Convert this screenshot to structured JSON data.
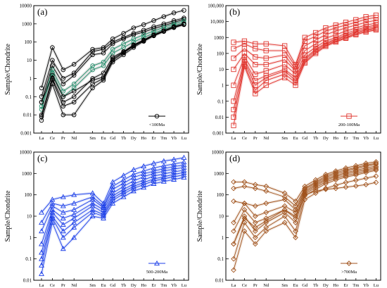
{
  "figure": {
    "elements": [
      "La",
      "Ce",
      "Pr",
      "Nd",
      "Sm",
      "Eu",
      "Gd",
      "Tb",
      "Dy",
      "Ho",
      "Er",
      "Tm",
      "Yb",
      "Lu"
    ],
    "ylabel": "Sample/Chondrite"
  },
  "chart_data": [
    {
      "type": "line",
      "panel_label": "(a)",
      "legend": "<100Ma",
      "marker": "circle",
      "color": "#000000",
      "highlight_color": "#1f8f6a",
      "ylabel": "Sample/Chondrite",
      "ylog": true,
      "ylim": [
        0.001,
        10000
      ],
      "yticks": [
        "0.001",
        "0.01",
        "0.1",
        "1",
        "10",
        "100",
        "1000",
        "10000"
      ],
      "legend_position": "bottom-right",
      "categories": [
        "La",
        "Ce",
        "Pr",
        "Nd",
        "Sm",
        "Eu",
        "Gd",
        "Tb",
        "Dy",
        "Ho",
        "Er",
        "Tm",
        "Yb",
        "Lu"
      ],
      "series": [
        {
          "values": [
            0.3,
            50,
            3,
            6,
            40,
            50,
            150,
            300,
            600,
            900,
            1500,
            2500,
            4000,
            5500
          ]
        },
        {
          "values": [
            0.1,
            10,
            1,
            2,
            30,
            40,
            100,
            180,
            300,
            450,
            700,
            1000,
            1500,
            2100
          ]
        },
        {
          "values": [
            0.05,
            5,
            0.5,
            1.5,
            20,
            25,
            80,
            150,
            250,
            350,
            550,
            800,
            1200,
            1800
          ]
        },
        {
          "values": [
            0.03,
            3,
            0.2,
            0.5,
            5,
            8,
            40,
            80,
            150,
            250,
            400,
            650,
            1000,
            1500
          ]
        },
        {
          "values": [
            0.02,
            2,
            0.1,
            0.3,
            3,
            5,
            25,
            50,
            100,
            180,
            300,
            500,
            800,
            1200
          ]
        },
        {
          "values": [
            0.01,
            1,
            0.05,
            0.1,
            1,
            2,
            15,
            30,
            70,
            130,
            250,
            420,
            700,
            1000
          ]
        },
        {
          "values": [
            0.008,
            0.8,
            0.03,
            0.05,
            0.5,
            1,
            10,
            25,
            60,
            120,
            230,
            400,
            650,
            950
          ]
        },
        {
          "values": [
            0.005,
            0.5,
            0.01,
            0.01,
            0.3,
            0.8,
            8,
            20,
            50,
            110,
            220,
            380,
            620,
            900
          ]
        },
        {
          "values": [
            0.05,
            1.5,
            0.1,
            0.2,
            0.8,
            1.2,
            12,
            28,
            65,
            125,
            240,
            410,
            680,
            980
          ]
        }
      ]
    },
    {
      "type": "line",
      "panel_label": "(b)",
      "legend": "200-100Ma",
      "marker": "square",
      "color": "#e0352e",
      "ylabel": "Sample/Chondrite",
      "ylog": true,
      "ylim": [
        0.001,
        100000
      ],
      "yticks": [
        "0.001",
        "0.01",
        "0.1",
        "1",
        "10",
        "100",
        "1000",
        "10,000",
        "100,000"
      ],
      "legend_position": "bottom-right",
      "categories": [
        "La",
        "Ce",
        "Pr",
        "Nd",
        "Sm",
        "Eu",
        "Gd",
        "Tb",
        "Dy",
        "Ho",
        "Er",
        "Tm",
        "Yb",
        "Lu"
      ],
      "series": [
        {
          "values": [
            500,
            600,
            400,
            400,
            300,
            20,
            1000,
            2000,
            4000,
            6000,
            9000,
            13000,
            20000,
            25000
          ]
        },
        {
          "values": [
            200,
            400,
            200,
            150,
            150,
            15,
            600,
            1200,
            2500,
            4000,
            6000,
            9000,
            14000,
            18000
          ]
        },
        {
          "values": [
            50,
            200,
            60,
            50,
            80,
            10,
            300,
            700,
            1500,
            2500,
            4000,
            6000,
            9000,
            12000
          ]
        },
        {
          "values": [
            10,
            100,
            20,
            20,
            40,
            8,
            150,
            400,
            900,
            1500,
            2500,
            4000,
            6000,
            8000
          ]
        },
        {
          "values": [
            1,
            60,
            5,
            8,
            20,
            5,
            80,
            250,
            600,
            1000,
            1800,
            3000,
            4500,
            6000
          ]
        },
        {
          "values": [
            0.1,
            40,
            2,
            4,
            10,
            3,
            50,
            180,
            450,
            800,
            1400,
            2400,
            3600,
            4800
          ]
        },
        {
          "values": [
            0.03,
            30,
            1,
            3,
            8,
            2,
            40,
            150,
            380,
            700,
            1200,
            2000,
            3000,
            4000
          ]
        },
        {
          "values": [
            0.01,
            20,
            0.5,
            2,
            5,
            1.5,
            30,
            120,
            320,
            600,
            1000,
            1700,
            2600,
            3500
          ]
        },
        {
          "values": [
            0.003,
            15,
            0.3,
            1,
            3,
            1,
            25,
            100,
            280,
            520,
            900,
            1500,
            2200,
            3000
          ]
        }
      ]
    },
    {
      "type": "line",
      "panel_label": "(c)",
      "legend": "500-200Ma",
      "marker": "triangle",
      "color": "#1c3fe8",
      "ylabel": "Sample/Chondrite",
      "ylog": true,
      "ylim": [
        0.01,
        10000
      ],
      "yticks": [
        "0.01",
        "0.1",
        "1",
        "10",
        "100",
        "1000",
        "10000"
      ],
      "legend_position": "bottom-right",
      "categories": [
        "La",
        "Ce",
        "Pr",
        "Nd",
        "Sm",
        "Eu",
        "Gd",
        "Tb",
        "Dy",
        "Ho",
        "Er",
        "Tm",
        "Yb",
        "Lu"
      ],
      "series": [
        {
          "values": [
            15,
            60,
            80,
            100,
            120,
            40,
            400,
            800,
            1500,
            2200,
            3000,
            3800,
            4500,
            5500
          ]
        },
        {
          "values": [
            5,
            40,
            30,
            40,
            80,
            30,
            250,
            500,
            900,
            1300,
            1800,
            2300,
            2800,
            3400
          ]
        },
        {
          "values": [
            2,
            30,
            15,
            20,
            60,
            25,
            180,
            350,
            650,
            950,
            1300,
            1700,
            2100,
            2500
          ]
        },
        {
          "values": [
            0.5,
            20,
            8,
            12,
            40,
            20,
            120,
            250,
            450,
            700,
            1000,
            1300,
            1600,
            1900
          ]
        },
        {
          "values": [
            0.2,
            15,
            4,
            8,
            30,
            15,
            90,
            180,
            320,
            500,
            750,
            950,
            1200,
            1400
          ]
        },
        {
          "values": [
            0.1,
            10,
            2,
            5,
            20,
            12,
            70,
            140,
            250,
            380,
            550,
            700,
            900,
            1100
          ]
        },
        {
          "values": [
            0.05,
            8,
            1,
            3,
            15,
            10,
            55,
            110,
            200,
            300,
            450,
            560,
            700,
            850
          ]
        },
        {
          "values": [
            0.02,
            5,
            0.3,
            1,
            10,
            8,
            40,
            80,
            150,
            220,
            330,
            420,
            520,
            650
          ]
        }
      ]
    },
    {
      "type": "line",
      "panel_label": "(d)",
      "legend": ">700Ma",
      "marker": "diamond",
      "color": "#a0521c",
      "ylabel": "Sample/Chondrite",
      "ylog": true,
      "ylim": [
        0.01,
        10000
      ],
      "yticks": [
        "0.01",
        "0.1",
        "1",
        "10",
        "100",
        "1000",
        "10000"
      ],
      "legend_position": "bottom-right",
      "categories": [
        "La",
        "Ce",
        "Pr",
        "Nd",
        "Sm",
        "Eu",
        "Gd",
        "Tb",
        "Dy",
        "Ho",
        "Er",
        "Tm",
        "Yb",
        "Lu"
      ],
      "series": [
        {
          "values": [
            400,
            400,
            300,
            250,
            120,
            50,
            250,
            500,
            900,
            1300,
            1800,
            2300,
            3000,
            3500
          ]
        },
        {
          "values": [
            200,
            250,
            200,
            150,
            80,
            30,
            200,
            400,
            750,
            1100,
            1500,
            1900,
            2500,
            3000
          ]
        },
        {
          "values": [
            50,
            40,
            30,
            40,
            60,
            20,
            180,
            350,
            650,
            950,
            1300,
            1700,
            2200,
            2700
          ]
        },
        {
          "values": [
            5,
            40,
            10,
            15,
            30,
            15,
            150,
            300,
            550,
            800,
            1100,
            1400,
            1800,
            2200
          ]
        },
        {
          "values": [
            2,
            20,
            5,
            8,
            20,
            10,
            130,
            260,
            480,
            700,
            950,
            1200,
            1500,
            1900
          ]
        },
        {
          "values": [
            0.5,
            10,
            2,
            5,
            15,
            5,
            110,
            220,
            400,
            600,
            800,
            1000,
            1300,
            1600
          ]
        },
        {
          "values": [
            0.1,
            5,
            1,
            3,
            10,
            2,
            90,
            180,
            330,
            500,
            680,
            850,
            1100,
            1400
          ]
        },
        {
          "values": [
            0.03,
            2,
            0.5,
            2,
            5,
            1,
            60,
            120,
            200,
            280,
            380,
            480,
            600,
            750
          ]
        },
        {
          "values": [
            0.5,
            8,
            3,
            6,
            20,
            8,
            100,
            150,
            180,
            200,
            230,
            260,
            300,
            380
          ]
        }
      ]
    }
  ]
}
